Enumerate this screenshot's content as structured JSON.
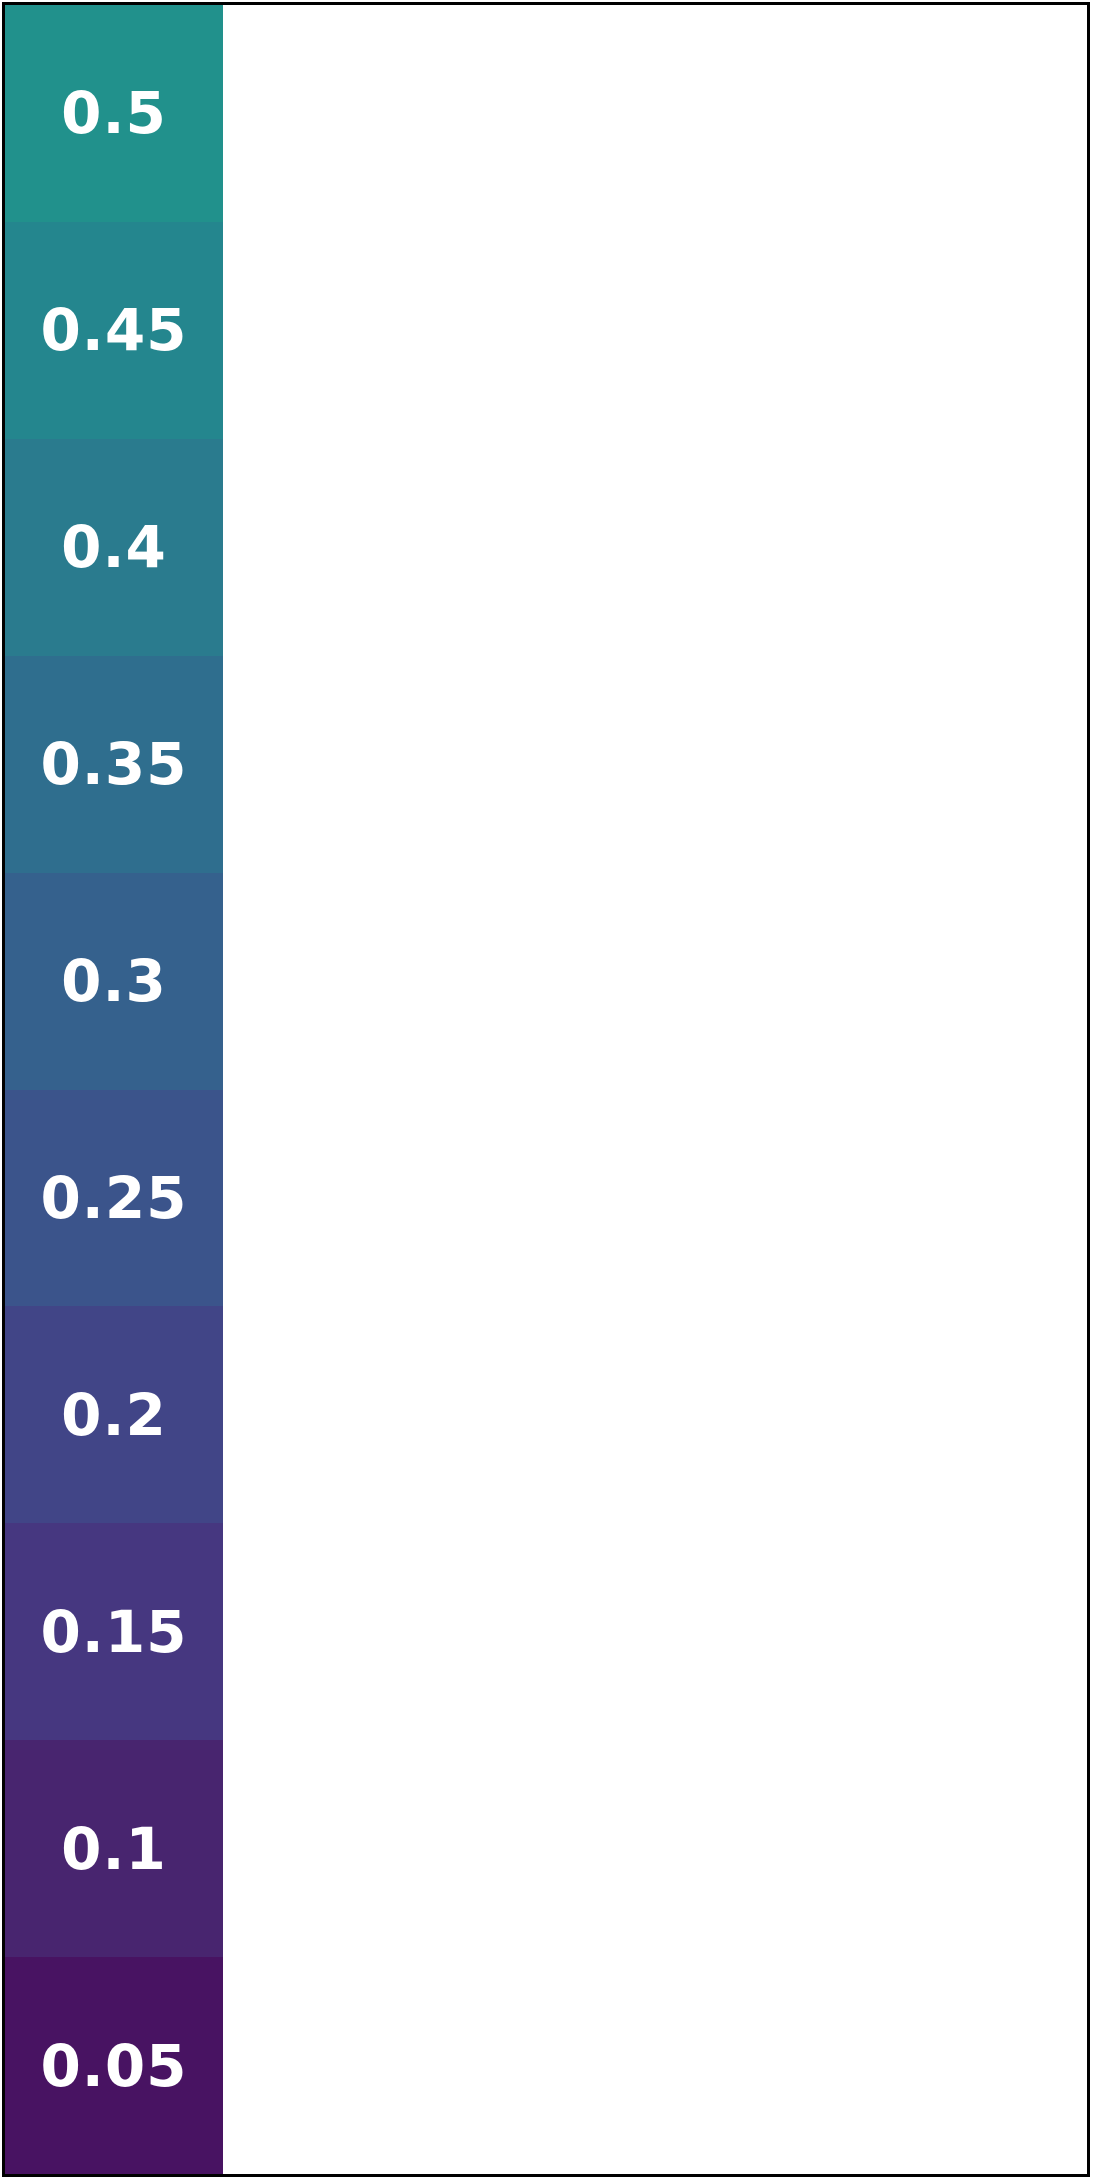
{
  "chart_data": {
    "type": "heatmap",
    "orientation": "vertical",
    "order": "top-to-bottom",
    "cells": [
      {
        "label": "0.5",
        "value": 0.5,
        "color": "#21918c"
      },
      {
        "label": "0.45",
        "value": 0.45,
        "color": "#24868e"
      },
      {
        "label": "0.4",
        "value": 0.4,
        "color": "#2a7b8e"
      },
      {
        "label": "0.35",
        "value": 0.35,
        "color": "#2f6e8e"
      },
      {
        "label": "0.3",
        "value": 0.3,
        "color": "#35618d"
      },
      {
        "label": "0.25",
        "value": 0.25,
        "color": "#3b548b"
      },
      {
        "label": "0.2",
        "value": 0.2,
        "color": "#414587"
      },
      {
        "label": "0.15",
        "value": 0.15,
        "color": "#463780"
      },
      {
        "label": "0.1",
        "value": 0.1,
        "color": "#48256f"
      },
      {
        "label": "0.05",
        "value": 0.05,
        "color": "#481362"
      }
    ],
    "text_color": "#ffffff",
    "frame_color": "#000000"
  }
}
